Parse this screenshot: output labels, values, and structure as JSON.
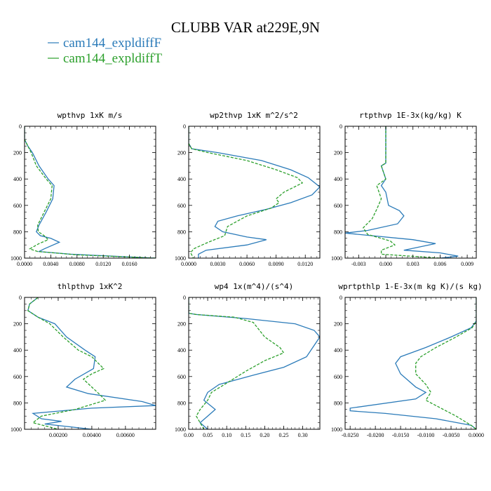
{
  "figure": {
    "title": "CLUBB VAR at229E,9N",
    "legend": [
      {
        "label": "cam144_expldiffF",
        "color": "#2b7bb9",
        "style": "solid"
      },
      {
        "label": "cam144_expldiffT",
        "color": "#2ca02c",
        "style": "dashed"
      }
    ]
  },
  "chart_data": [
    {
      "type": "line",
      "title": "wpthvp   1xK m/s",
      "xlim": [
        0,
        0.02
      ],
      "ylim": [
        1000,
        0
      ],
      "xticks": [
        0,
        0.004,
        0.008,
        0.012,
        0.016
      ],
      "xtick_labels": [
        "0.0000",
        "0.0040",
        "0.0080",
        "0.0120",
        "0.0160"
      ],
      "yticks": [
        0,
        200,
        400,
        600,
        800,
        1000
      ],
      "series": [
        {
          "name": "cam144_expldiffF",
          "points": [
            [
              0,
              0
            ],
            [
              0,
              100
            ],
            [
              0.0005,
              150
            ],
            [
              0.0012,
              200
            ],
            [
              0.0022,
              300
            ],
            [
              0.0036,
              400
            ],
            [
              0.0045,
              450
            ],
            [
              0.0043,
              550
            ],
            [
              0.0033,
              650
            ],
            [
              0.0022,
              750
            ],
            [
              0.0018,
              800
            ],
            [
              0.0024,
              830
            ],
            [
              0.004,
              850
            ],
            [
              0.0053,
              880
            ],
            [
              0.003,
              930
            ],
            [
              0.0022,
              950
            ],
            [
              0.007,
              970
            ],
            [
              0.02,
              1000
            ]
          ]
        },
        {
          "name": "cam144_expldiffT",
          "points": [
            [
              0,
              0
            ],
            [
              0,
              100
            ],
            [
              0.0005,
              150
            ],
            [
              0.001,
              200
            ],
            [
              0.0018,
              300
            ],
            [
              0.0033,
              400
            ],
            [
              0.0042,
              450
            ],
            [
              0.004,
              550
            ],
            [
              0.003,
              650
            ],
            [
              0.002,
              750
            ],
            [
              0.0021,
              800
            ],
            [
              0.003,
              830
            ],
            [
              0.0036,
              860
            ],
            [
              0.0022,
              890
            ],
            [
              0.0008,
              930
            ],
            [
              0.002,
              950
            ],
            [
              0.008,
              975
            ],
            [
              0.02,
              1000
            ]
          ]
        }
      ]
    },
    {
      "type": "line",
      "title": "wp2thvp   1xK m^2/s^2",
      "xlim": [
        0,
        0.0135
      ],
      "ylim": [
        1000,
        0
      ],
      "xticks": [
        0,
        0.003,
        0.006,
        0.009,
        0.012
      ],
      "xtick_labels": [
        "0.0000",
        "0.0030",
        "0.0060",
        "0.0090",
        "0.0120"
      ],
      "yticks": [
        0,
        200,
        400,
        600,
        800,
        1000
      ],
      "series": [
        {
          "name": "cam144_expldiffF",
          "points": [
            [
              0,
              0
            ],
            [
              0,
              130
            ],
            [
              0.0003,
              170
            ],
            [
              0.003,
              200
            ],
            [
              0.0075,
              260
            ],
            [
              0.0105,
              330
            ],
            [
              0.0123,
              390
            ],
            [
              0.0135,
              460
            ],
            [
              0.0127,
              520
            ],
            [
              0.0105,
              580
            ],
            [
              0.008,
              630
            ],
            [
              0.005,
              680
            ],
            [
              0.003,
              720
            ],
            [
              0.0027,
              760
            ],
            [
              0.0035,
              800
            ],
            [
              0.006,
              840
            ],
            [
              0.008,
              860
            ],
            [
              0.006,
              900
            ],
            [
              0.0018,
              940
            ],
            [
              0.001,
              970
            ],
            [
              0.001,
              1000
            ]
          ]
        },
        {
          "name": "cam144_expldiffT",
          "points": [
            [
              0,
              0
            ],
            [
              0,
              130
            ],
            [
              0.0003,
              170
            ],
            [
              0.002,
              200
            ],
            [
              0.006,
              260
            ],
            [
              0.009,
              330
            ],
            [
              0.0112,
              390
            ],
            [
              0.0117,
              430
            ],
            [
              0.0098,
              500
            ],
            [
              0.009,
              550
            ],
            [
              0.0093,
              580
            ],
            [
              0.0085,
              620
            ],
            [
              0.006,
              680
            ],
            [
              0.004,
              760
            ],
            [
              0.0037,
              830
            ],
            [
              0.002,
              880
            ],
            [
              0.0005,
              930
            ],
            [
              0.0002,
              960
            ],
            [
              0.0005,
              1000
            ]
          ]
        }
      ]
    },
    {
      "type": "line",
      "title": "rtpthvp   1E-3x(kg/kg) K",
      "xlim": [
        -0.0045,
        0.01
      ],
      "ylim": [
        1000,
        0
      ],
      "xticks": [
        -0.003,
        0,
        0.003,
        0.006,
        0.009
      ],
      "xtick_labels": [
        "-0.003",
        "0.000",
        "0.003",
        "0.006",
        "0.009"
      ],
      "yticks": [
        0,
        200,
        400,
        600,
        800,
        1000
      ],
      "series": [
        {
          "name": "cam144_expldiffF",
          "points": [
            [
              0,
              0
            ],
            [
              0,
              280
            ],
            [
              -0.0005,
              300
            ],
            [
              0,
              400
            ],
            [
              -0.0005,
              450
            ],
            [
              0,
              500
            ],
            [
              0.0003,
              600
            ],
            [
              0.0015,
              640
            ],
            [
              0.002,
              680
            ],
            [
              0.0013,
              740
            ],
            [
              -0.002,
              790
            ],
            [
              -0.0045,
              810
            ],
            [
              0.003,
              860
            ],
            [
              0.0055,
              890
            ],
            [
              0.002,
              940
            ],
            [
              0.006,
              960
            ],
            [
              0.008,
              985
            ],
            [
              0.006,
              1000
            ]
          ]
        },
        {
          "name": "cam144_expldiffT",
          "points": [
            [
              0,
              0
            ],
            [
              0,
              280
            ],
            [
              -0.0005,
              300
            ],
            [
              0,
              400
            ],
            [
              -0.001,
              450
            ],
            [
              -0.0005,
              550
            ],
            [
              -0.001,
              630
            ],
            [
              -0.0015,
              700
            ],
            [
              -0.0025,
              770
            ],
            [
              -0.002,
              820
            ],
            [
              0.0005,
              870
            ],
            [
              0.001,
              900
            ],
            [
              -0.0005,
              940
            ],
            [
              -0.0005,
              970
            ],
            [
              0.006,
              1000
            ]
          ]
        }
      ]
    },
    {
      "type": "line",
      "title": "thlpthvp   1xK^2",
      "xlim": [
        0,
        0.0078
      ],
      "ylim": [
        1000,
        0
      ],
      "xticks": [
        0.002,
        0.004,
        0.006
      ],
      "xtick_labels": [
        "0.00200",
        "0.00400",
        "0.00600"
      ],
      "yticks": [
        0,
        200,
        400,
        600,
        800,
        1000
      ],
      "series": [
        {
          "name": "cam144_expldiffF",
          "points": [
            [
              0.0008,
              0
            ],
            [
              0.0003,
              50
            ],
            [
              0.0002,
              100
            ],
            [
              0.0008,
              150
            ],
            [
              0.0018,
              200
            ],
            [
              0.0025,
              300
            ],
            [
              0.0036,
              400
            ],
            [
              0.0042,
              450
            ],
            [
              0.0041,
              540
            ],
            [
              0.003,
              620
            ],
            [
              0.0025,
              680
            ],
            [
              0.0038,
              730
            ],
            [
              0.007,
              790
            ],
            [
              0.0078,
              820
            ],
            [
              0.004,
              840
            ],
            [
              0.0005,
              880
            ],
            [
              0.001,
              920
            ],
            [
              0.0022,
              940
            ],
            [
              0.0012,
              960
            ],
            [
              0.004,
              1000
            ]
          ]
        },
        {
          "name": "cam144_expldiffT",
          "points": [
            [
              0.0008,
              0
            ],
            [
              0.0003,
              50
            ],
            [
              0.0002,
              100
            ],
            [
              0.0008,
              150
            ],
            [
              0.0015,
              200
            ],
            [
              0.0023,
              300
            ],
            [
              0.0032,
              400
            ],
            [
              0.004,
              450
            ],
            [
              0.0047,
              540
            ],
            [
              0.004,
              580
            ],
            [
              0.0035,
              620
            ],
            [
              0.0045,
              740
            ],
            [
              0.0048,
              780
            ],
            [
              0.003,
              850
            ],
            [
              0.001,
              900
            ],
            [
              0.0005,
              950
            ],
            [
              0.002,
              1000
            ]
          ]
        }
      ]
    },
    {
      "type": "line",
      "title": "wp4   1x(m^4)/(s^4)",
      "xlim": [
        0,
        0.345
      ],
      "ylim": [
        1000,
        0
      ],
      "xticks": [
        0,
        0.05,
        0.1,
        0.15,
        0.2,
        0.25,
        0.3
      ],
      "xtick_labels": [
        "0.00",
        "0.05",
        "0.10",
        "0.15",
        "0.20",
        "0.25",
        "0.30"
      ],
      "yticks": [
        0,
        200,
        400,
        600,
        800,
        1000
      ],
      "series": [
        {
          "name": "cam144_expldiffF",
          "points": [
            [
              0,
              0
            ],
            [
              0,
              120
            ],
            [
              0.02,
              130
            ],
            [
              0.15,
              160
            ],
            [
              0.28,
              200
            ],
            [
              0.33,
              250
            ],
            [
              0.345,
              300
            ],
            [
              0.31,
              450
            ],
            [
              0.25,
              530
            ],
            [
              0.17,
              590
            ],
            [
              0.08,
              660
            ],
            [
              0.05,
              720
            ],
            [
              0.04,
              780
            ],
            [
              0.07,
              850
            ],
            [
              0.05,
              900
            ],
            [
              0.03,
              950
            ],
            [
              0.05,
              1000
            ]
          ]
        },
        {
          "name": "cam144_expldiffT",
          "points": [
            [
              0,
              0
            ],
            [
              0,
              120
            ],
            [
              0.02,
              130
            ],
            [
              0.12,
              150
            ],
            [
              0.17,
              190
            ],
            [
              0.2,
              300
            ],
            [
              0.24,
              380
            ],
            [
              0.25,
              420
            ],
            [
              0.2,
              480
            ],
            [
              0.15,
              560
            ],
            [
              0.1,
              650
            ],
            [
              0.06,
              720
            ],
            [
              0.05,
              780
            ],
            [
              0.03,
              850
            ],
            [
              0.02,
              900
            ],
            [
              0.03,
              950
            ],
            [
              0.04,
              1000
            ]
          ]
        }
      ]
    },
    {
      "type": "line",
      "title": "wprtpthlp   1-E-3x(m kg K)/(s kg)",
      "xlim": [
        -0.026,
        0
      ],
      "ylim": [
        1000,
        0
      ],
      "xticks": [
        -0.025,
        -0.02,
        -0.015,
        -0.01,
        -0.005,
        0
      ],
      "xtick_labels": [
        "-0.0250",
        "-0.0200",
        "-0.0150",
        "-0.0100",
        "-0.0050",
        "0.0000"
      ],
      "yticks": [
        0,
        200,
        400,
        600,
        800,
        1000
      ],
      "series": [
        {
          "name": "cam144_expldiffF",
          "points": [
            [
              0,
              0
            ],
            [
              0,
              180
            ],
            [
              -0.001,
              230
            ],
            [
              -0.005,
              300
            ],
            [
              -0.01,
              380
            ],
            [
              -0.015,
              450
            ],
            [
              -0.016,
              500
            ],
            [
              -0.015,
              580
            ],
            [
              -0.012,
              680
            ],
            [
              -0.01,
              720
            ],
            [
              -0.012,
              770
            ],
            [
              -0.025,
              840
            ],
            [
              -0.025,
              860
            ],
            [
              -0.018,
              880
            ],
            [
              -0.008,
              920
            ],
            [
              -0.001,
              970
            ],
            [
              0,
              1000
            ]
          ]
        },
        {
          "name": "cam144_expldiffT",
          "points": [
            [
              0,
              0
            ],
            [
              0,
              180
            ],
            [
              -0.0008,
              230
            ],
            [
              -0.004,
              300
            ],
            [
              -0.008,
              380
            ],
            [
              -0.011,
              450
            ],
            [
              -0.012,
              500
            ],
            [
              -0.012,
              580
            ],
            [
              -0.01,
              660
            ],
            [
              -0.009,
              720
            ],
            [
              -0.01,
              780
            ],
            [
              -0.008,
              820
            ],
            [
              -0.004,
              900
            ],
            [
              -0.001,
              970
            ],
            [
              0,
              1000
            ]
          ]
        }
      ]
    }
  ]
}
